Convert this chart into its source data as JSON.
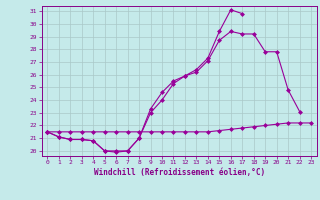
{
  "xlabel": "Windchill (Refroidissement éolien,°C)",
  "xlim": [
    -0.5,
    23.5
  ],
  "ylim": [
    19.6,
    31.4
  ],
  "xticks": [
    0,
    1,
    2,
    3,
    4,
    5,
    6,
    7,
    8,
    9,
    10,
    11,
    12,
    13,
    14,
    15,
    16,
    17,
    18,
    19,
    20,
    21,
    22,
    23
  ],
  "yticks": [
    20,
    21,
    22,
    23,
    24,
    25,
    26,
    27,
    28,
    29,
    30,
    31
  ],
  "bg_color": "#c5eaea",
  "grid_color": "#aac8c8",
  "line_color": "#990099",
  "lineA_x": [
    0,
    1,
    2,
    3,
    4,
    5,
    6,
    7,
    8,
    9,
    10,
    11,
    12,
    13,
    14,
    15,
    16,
    17
  ],
  "lineA_y": [
    21.5,
    21.1,
    20.9,
    20.9,
    20.8,
    20.0,
    19.9,
    20.0,
    21.0,
    23.3,
    24.6,
    25.5,
    25.9,
    26.4,
    27.3,
    29.4,
    31.1,
    30.8
  ],
  "lineB_x": [
    0,
    1,
    2,
    3,
    4,
    5,
    6,
    7,
    8,
    9,
    10,
    11,
    12,
    13,
    14,
    15,
    16,
    17,
    18,
    19,
    20,
    21,
    22
  ],
  "lineB_y": [
    21.5,
    21.1,
    20.9,
    20.9,
    20.8,
    20.0,
    20.0,
    20.0,
    21.0,
    23.0,
    24.0,
    25.3,
    25.9,
    26.2,
    27.1,
    28.7,
    29.4,
    29.2,
    29.2,
    27.8,
    27.8,
    24.8,
    23.1
  ],
  "lineC_x": [
    0,
    1,
    2,
    3,
    4,
    5,
    6,
    7,
    8,
    9,
    10,
    11,
    12,
    13,
    14,
    15,
    16,
    17,
    18,
    19,
    20,
    21,
    22,
    23
  ],
  "lineC_y": [
    21.5,
    21.5,
    21.5,
    21.5,
    21.5,
    21.5,
    21.5,
    21.5,
    21.5,
    21.5,
    21.5,
    21.5,
    21.5,
    21.5,
    21.5,
    21.6,
    21.7,
    21.8,
    21.9,
    22.0,
    22.1,
    22.2,
    22.2,
    22.2
  ]
}
